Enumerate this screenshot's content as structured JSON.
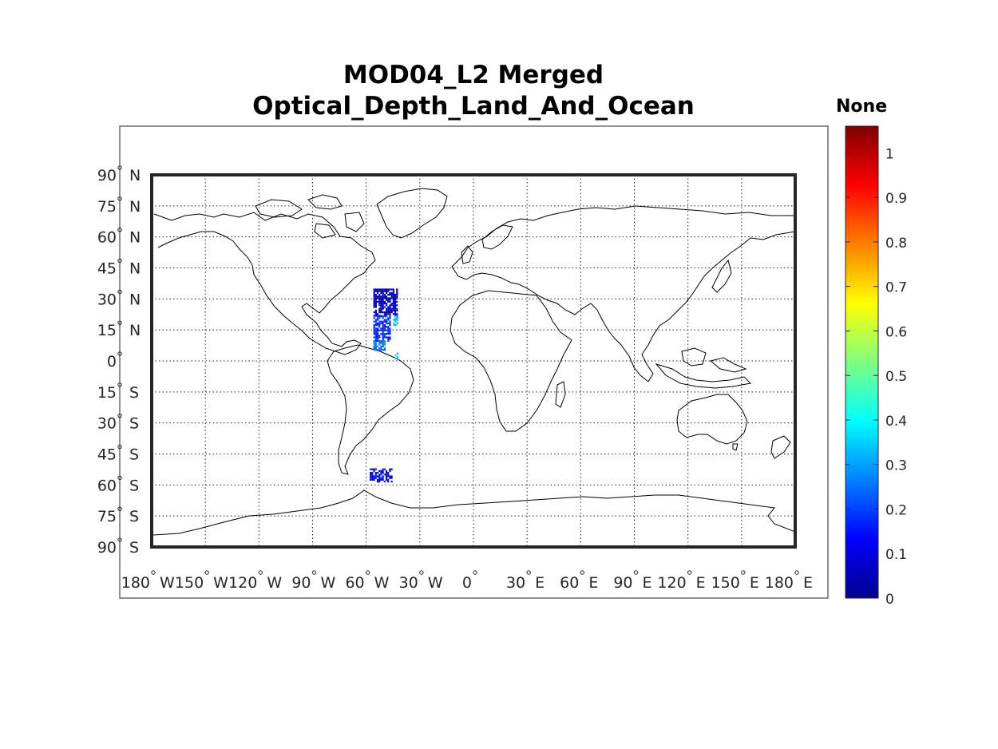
{
  "title": {
    "line1": "MOD04_L2 Merged",
    "line2": "Optical_Depth_Land_And_Ocean"
  },
  "colorbar": {
    "label": "None",
    "ticks": [
      "0",
      "0.1",
      "0.2",
      "0.3",
      "0.4",
      "0.5",
      "0.6",
      "0.7",
      "0.8",
      "0.9",
      "1"
    ],
    "range": [
      0,
      1.06
    ],
    "colormap": "jet"
  },
  "map": {
    "projection": "equirectangular",
    "lon_range": [
      -180,
      180
    ],
    "lat_range": [
      -90,
      90
    ],
    "grid": true,
    "lat_ticks": [
      {
        "num": "90",
        "hem": "N"
      },
      {
        "num": "75",
        "hem": "N"
      },
      {
        "num": "60",
        "hem": "N"
      },
      {
        "num": "45",
        "hem": "N"
      },
      {
        "num": "30",
        "hem": "N"
      },
      {
        "num": "15",
        "hem": "N"
      },
      {
        "num": "0",
        "hem": ""
      },
      {
        "num": "15",
        "hem": "S"
      },
      {
        "num": "30",
        "hem": "S"
      },
      {
        "num": "45",
        "hem": "S"
      },
      {
        "num": "60",
        "hem": "S"
      },
      {
        "num": "75",
        "hem": "S"
      },
      {
        "num": "90",
        "hem": "S"
      }
    ],
    "lon_ticks": [
      {
        "num": "180",
        "hem": "W"
      },
      {
        "num": "150",
        "hem": "W"
      },
      {
        "num": "120",
        "hem": "W"
      },
      {
        "num": "90",
        "hem": "W"
      },
      {
        "num": "60",
        "hem": "W"
      },
      {
        "num": "30",
        "hem": "W"
      },
      {
        "num": "0",
        "hem": ""
      },
      {
        "num": "30",
        "hem": "E"
      },
      {
        "num": "60",
        "hem": "E"
      },
      {
        "num": "90",
        "hem": "E"
      },
      {
        "num": "120",
        "hem": "E"
      },
      {
        "num": "150",
        "hem": "E"
      },
      {
        "num": "180",
        "hem": "E"
      }
    ],
    "data_swaths": [
      {
        "lon": [
          -56,
          -43
        ],
        "lat": [
          22,
          35
        ],
        "value": 0.06
      },
      {
        "lon": [
          -56,
          -47
        ],
        "lat": [
          10,
          22
        ],
        "value": 0.18
      },
      {
        "lon": [
          -45,
          -43
        ],
        "lat": [
          17,
          22
        ],
        "value": 0.32
      },
      {
        "lon": [
          -56,
          -50
        ],
        "lat": [
          5,
          10
        ],
        "value": 0.25
      },
      {
        "lon": [
          -44,
          -43
        ],
        "lat": [
          1,
          4
        ],
        "value": 0.34
      },
      {
        "lon": [
          -58,
          -46
        ],
        "lat": [
          -58,
          -52
        ],
        "value": 0.12
      }
    ]
  }
}
